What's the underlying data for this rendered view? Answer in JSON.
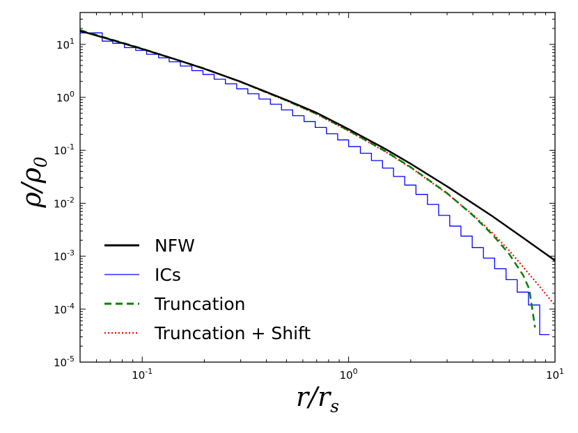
{
  "chart_data": {
    "type": "line",
    "x_scale": "log",
    "y_scale": "log",
    "xlim": [
      0.05,
      10
    ],
    "ylim": [
      1e-05,
      40
    ],
    "xlabel": "r/r_s",
    "ylabel": "ρ/ρ_0",
    "xlabel_parts": {
      "base": "r",
      "sub": "s",
      "num": "r"
    },
    "ylabel_parts": {
      "base": "ρ",
      "sub": "0",
      "num": "ρ"
    },
    "x_ticks": [
      {
        "value": 0.1,
        "base": "10",
        "exp": "-1"
      },
      {
        "value": 1,
        "base": "10",
        "exp": "0"
      },
      {
        "value": 10,
        "base": "10",
        "exp": "1"
      }
    ],
    "y_ticks": [
      {
        "value": 1e-05,
        "base": "10",
        "exp": "-5"
      },
      {
        "value": 0.0001,
        "base": "10",
        "exp": "-4"
      },
      {
        "value": 0.001,
        "base": "10",
        "exp": "-3"
      },
      {
        "value": 0.01,
        "base": "10",
        "exp": "-2"
      },
      {
        "value": 0.1,
        "base": "10",
        "exp": "-1"
      },
      {
        "value": 1,
        "base": "10",
        "exp": "0"
      },
      {
        "value": 10,
        "base": "10",
        "exp": "1"
      }
    ],
    "legend_position": "lower-left",
    "grid": false,
    "series": [
      {
        "name": "NFW",
        "color": "#000000",
        "style": "solid",
        "step": false,
        "x": [
          0.05,
          0.07,
          0.1,
          0.15,
          0.2,
          0.3,
          0.5,
          0.7,
          1.0,
          1.5,
          2.0,
          3.0,
          5.0,
          7.0,
          10.0
        ],
        "y": [
          18.0,
          12.4,
          8.2,
          5.0,
          3.47,
          1.97,
          0.89,
          0.51,
          0.25,
          0.107,
          0.0556,
          0.0208,
          0.0056,
          0.00223,
          0.00083
        ]
      },
      {
        "name": "ICs",
        "color": "#0000ff",
        "style": "step",
        "step": true,
        "x": [
          0.05,
          0.064,
          0.072,
          0.082,
          0.093,
          0.105,
          0.12,
          0.135,
          0.153,
          0.174,
          0.197,
          0.223,
          0.253,
          0.287,
          0.325,
          0.368,
          0.418,
          0.473,
          0.536,
          0.608,
          0.689,
          0.781,
          0.885,
          1.0,
          1.14,
          1.29,
          1.46,
          1.65,
          1.87,
          2.12,
          2.41,
          2.73,
          3.09,
          3.5,
          3.97,
          4.5,
          5.1,
          5.79,
          6.56,
          7.44,
          8.43
        ],
        "y": [
          16.5,
          11.5,
          10.5,
          8.7,
          7.7,
          6.5,
          5.6,
          4.7,
          3.9,
          3.2,
          2.7,
          2.2,
          1.8,
          1.45,
          1.17,
          0.93,
          0.74,
          0.58,
          0.45,
          0.35,
          0.27,
          0.205,
          0.157,
          0.118,
          0.088,
          0.064,
          0.046,
          0.032,
          0.022,
          0.0147,
          0.0095,
          0.0059,
          0.0037,
          0.0024,
          0.00145,
          0.00092,
          0.00058,
          0.00036,
          0.00021,
          0.00012,
          3.3e-05
        ]
      },
      {
        "name": "Truncation",
        "color": "#008000",
        "style": "dashed",
        "step": false,
        "x": [
          0.05,
          0.07,
          0.1,
          0.15,
          0.2,
          0.3,
          0.5,
          0.7,
          1.0,
          1.5,
          2.0,
          3.0,
          4.0,
          5.0,
          6.0,
          7.0,
          7.5,
          8.0
        ],
        "y": [
          18.6,
          12.6,
          8.3,
          5.0,
          3.5,
          1.96,
          0.87,
          0.49,
          0.236,
          0.097,
          0.048,
          0.0155,
          0.0059,
          0.0025,
          0.0011,
          0.00044,
          0.00024,
          4.5e-05
        ]
      },
      {
        "name": "Truncation + Shift",
        "color": "#ff0000",
        "style": "dotted",
        "step": false,
        "x": [
          0.05,
          0.07,
          0.1,
          0.15,
          0.2,
          0.3,
          0.5,
          0.7,
          1.0,
          1.5,
          2.0,
          3.0,
          4.0,
          5.0,
          6.0,
          7.0,
          8.0,
          9.0,
          10.0
        ],
        "y": [
          18.2,
          12.4,
          8.2,
          5.0,
          3.45,
          1.95,
          0.86,
          0.48,
          0.231,
          0.095,
          0.047,
          0.0152,
          0.0061,
          0.0027,
          0.00128,
          0.00063,
          0.00034,
          0.000195,
          0.000118
        ]
      }
    ]
  }
}
